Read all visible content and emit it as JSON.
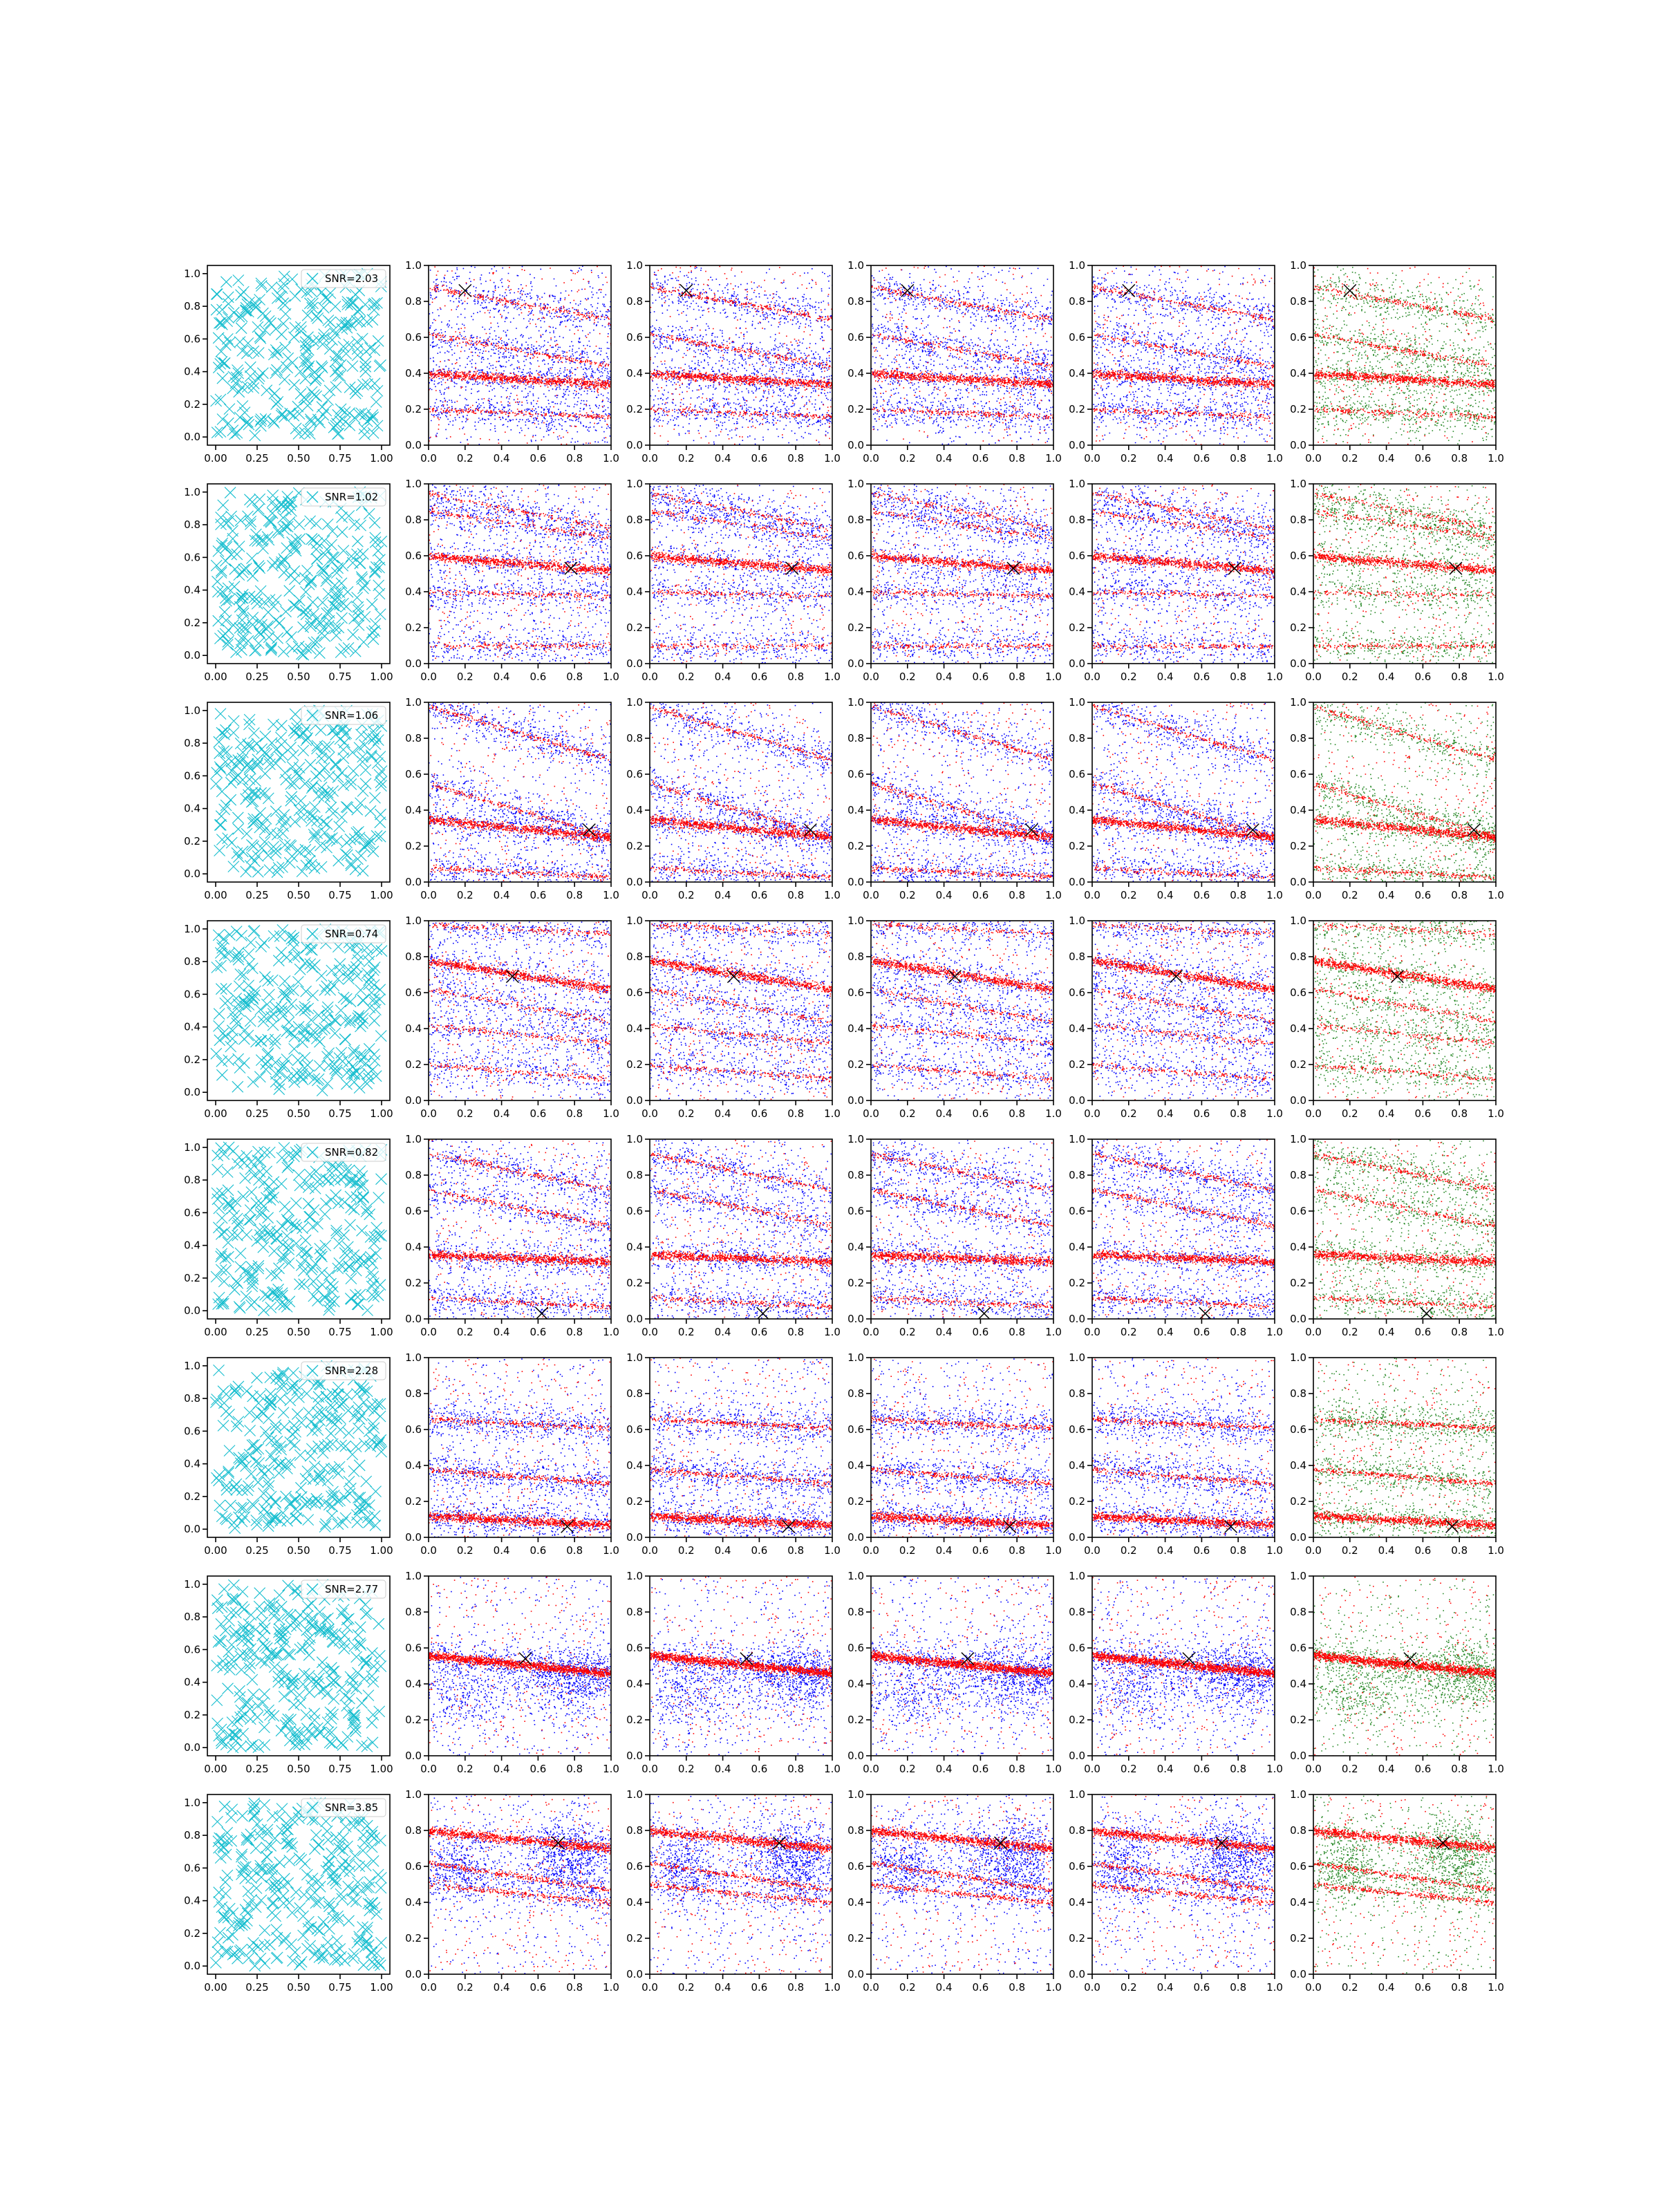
{
  "figure": {
    "layout": "8 rows x 6 columns of scatter panels",
    "colors": {
      "cyan": "#17becf",
      "blue": "#0000ff",
      "red": "#ff0000",
      "green": "#2a8a2a",
      "marker": "#000000",
      "frame": "#000000"
    }
  },
  "axes": {
    "col0_ticks": [
      0.0,
      0.25,
      0.5,
      0.75,
      1.0
    ],
    "col0_ticklabels": [
      "0.00",
      "0.25",
      "0.50",
      "0.75",
      "1.00"
    ],
    "col0_yticklabels": [
      "0.0",
      "0.2",
      "0.4",
      "0.6",
      "0.8",
      "1.0"
    ],
    "other_ticks": [
      0.0,
      0.2,
      0.4,
      0.6,
      0.8,
      1.0
    ],
    "other_ticklabels": [
      "0.0",
      "0.2",
      "0.4",
      "0.6",
      "0.8",
      "1.0"
    ],
    "xlim": [
      0,
      1
    ],
    "ylim": [
      0,
      1
    ],
    "grid": false
  },
  "chart_data": {
    "type": "scatter",
    "columns": [
      {
        "col": 0,
        "content": "cyan x markers (uniform random positions) with legend SNR"
      },
      {
        "col": 1,
        "content": "blue + red point clouds"
      },
      {
        "col": 2,
        "content": "blue + red point clouds"
      },
      {
        "col": 3,
        "content": "blue + red point clouds"
      },
      {
        "col": 4,
        "content": "blue + red point clouds"
      },
      {
        "col": 5,
        "content": "green + red point clouds"
      }
    ],
    "rows": [
      {
        "snr": "SNR=2.03",
        "marker": [
          0.2,
          0.86
        ],
        "bands": [
          [
            0.88,
            -0.18
          ],
          [
            0.62,
            -0.18
          ],
          [
            0.4,
            -0.06
          ],
          [
            0.2,
            -0.04
          ]
        ],
        "mainBand": 2
      },
      {
        "snr": "SNR=1.02",
        "marker": [
          0.78,
          0.53
        ],
        "bands": [
          [
            0.95,
            -0.2
          ],
          [
            0.85,
            -0.15
          ],
          [
            0.6,
            -0.08
          ],
          [
            0.4,
            -0.02
          ],
          [
            0.1,
            0.0
          ]
        ],
        "mainBand": 2
      },
      {
        "snr": "SNR=1.06",
        "marker": [
          0.88,
          0.29
        ],
        "bands": [
          [
            0.98,
            -0.3
          ],
          [
            0.55,
            -0.3
          ],
          [
            0.35,
            -0.1
          ],
          [
            0.08,
            -0.05
          ]
        ],
        "mainBand": 2
      },
      {
        "snr": "SNR=0.74",
        "marker": [
          0.46,
          0.69
        ],
        "bands": [
          [
            0.98,
            -0.05
          ],
          [
            0.78,
            -0.16
          ],
          [
            0.62,
            -0.18
          ],
          [
            0.42,
            -0.1
          ],
          [
            0.2,
            -0.08
          ]
        ],
        "mainBand": 1
      },
      {
        "snr": "SNR=0.82",
        "marker": [
          0.62,
          0.03
        ],
        "bands": [
          [
            0.92,
            -0.2
          ],
          [
            0.72,
            -0.2
          ],
          [
            0.36,
            -0.04
          ],
          [
            0.12,
            -0.05
          ]
        ],
        "mainBand": 2
      },
      {
        "snr": "SNR=2.28",
        "marker": [
          0.76,
          0.06
        ],
        "bands": [
          [
            0.66,
            -0.05
          ],
          [
            0.38,
            -0.08
          ],
          [
            0.12,
            -0.05
          ]
        ],
        "mainBand": 2
      },
      {
        "snr": "SNR=2.77",
        "marker": [
          0.53,
          0.54
        ],
        "bands": [
          [
            0.56,
            -0.1
          ]
        ],
        "mainBand": 0,
        "blobs": [
          [
            0.7,
            0.42,
            0.18,
            0.1
          ],
          [
            0.2,
            0.35,
            0.15,
            0.1
          ],
          [
            0.85,
            0.45,
            0.12,
            0.1
          ]
        ]
      },
      {
        "snr": "SNR=3.85",
        "marker": [
          0.71,
          0.73
        ],
        "bands": [
          [
            0.8,
            -0.1
          ],
          [
            0.62,
            -0.15
          ],
          [
            0.5,
            -0.1
          ]
        ],
        "mainBand": 0,
        "blobs": [
          [
            0.75,
            0.7,
            0.12,
            0.1
          ],
          [
            0.18,
            0.6,
            0.1,
            0.1
          ],
          [
            0.8,
            0.6,
            0.12,
            0.1
          ]
        ]
      }
    ]
  }
}
